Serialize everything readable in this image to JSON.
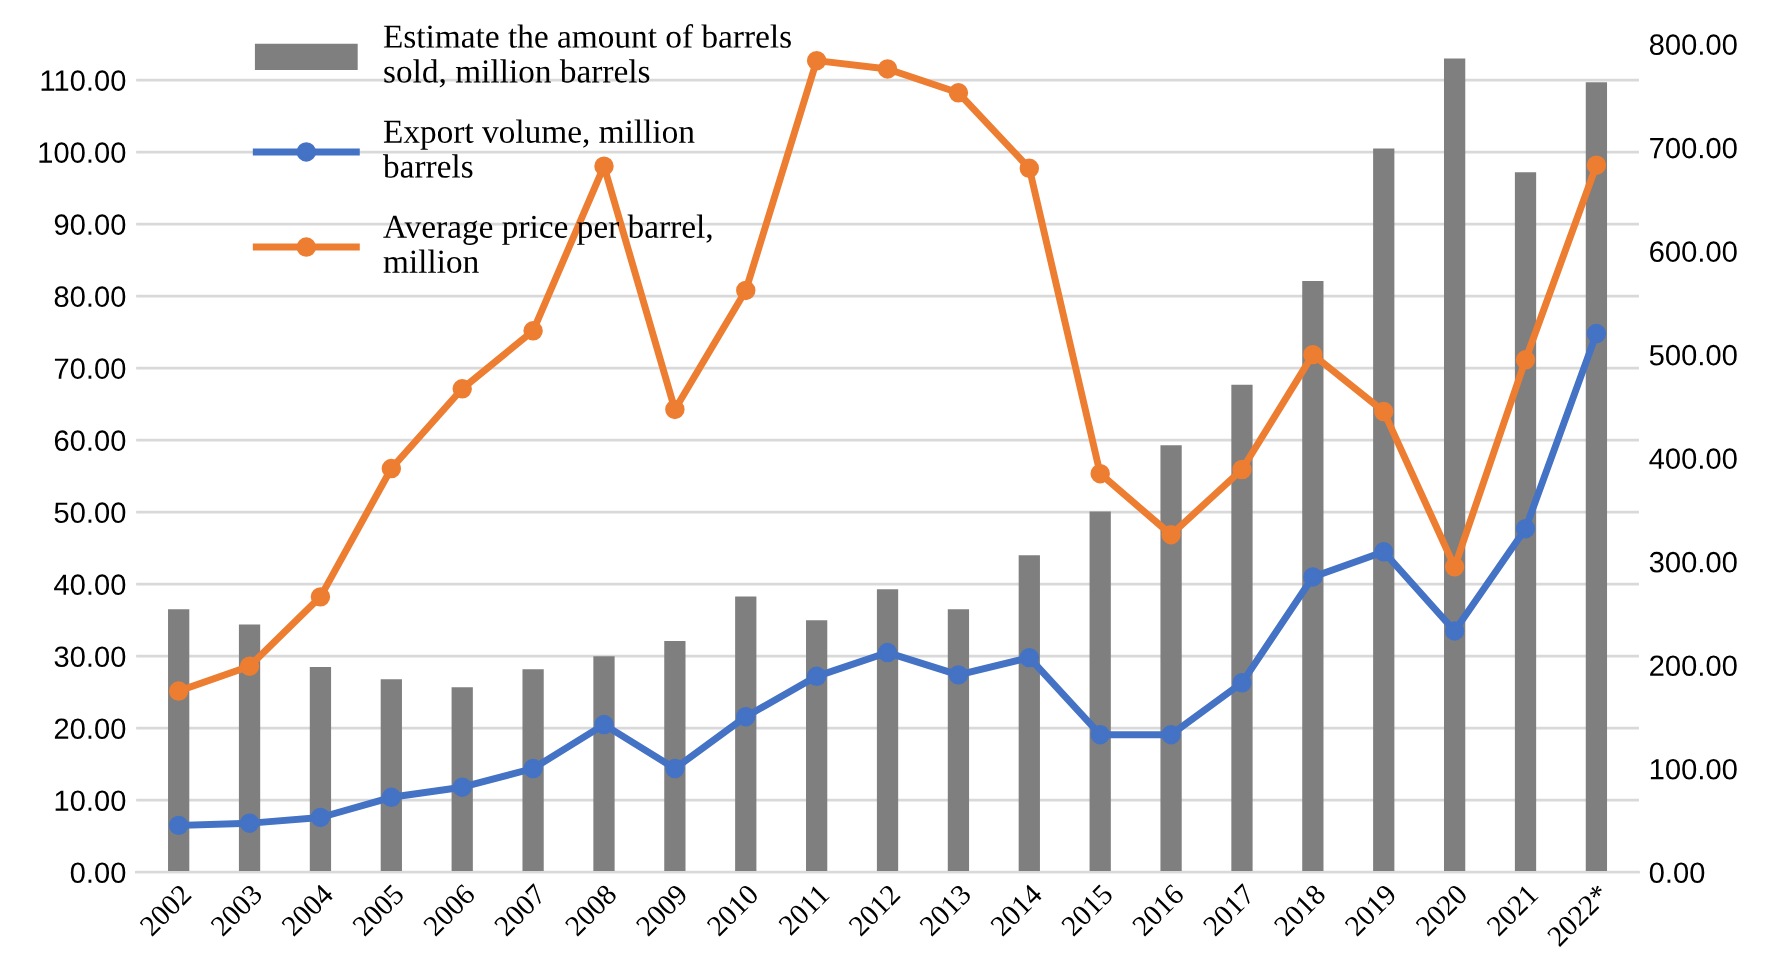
{
  "chart_data": {
    "type": "bar",
    "categories": [
      "2002",
      "2003",
      "2004",
      "2005",
      "2006",
      "2007",
      "2008",
      "2009",
      "2010",
      "2011",
      "2012",
      "2013",
      "2014",
      "2015",
      "2016",
      "2017",
      "2018",
      "2019",
      "2020",
      "2021",
      "2022*"
    ],
    "series": [
      {
        "name": "Estimate the amount of barrels sold, million barrels",
        "color": "#7f7f7f",
        "values": [
          36.5,
          34.4,
          28.5,
          26.8,
          25.7,
          28.2,
          30.0,
          32.1,
          38.3,
          35.0,
          39.3,
          36.5,
          44.0,
          50.1,
          59.3,
          67.7,
          82.1,
          100.5,
          113.0,
          97.2,
          109.7
        ]
      },
      {
        "name": "Export volume, million barrels",
        "type": "line",
        "color": "#4472c4",
        "values": [
          6.5,
          6.8,
          7.6,
          10.4,
          11.8,
          14.4,
          20.5,
          14.4,
          21.6,
          27.2,
          30.5,
          27.4,
          29.8,
          19.1,
          19.1,
          26.3,
          41.0,
          44.5,
          33.5,
          47.7,
          74.8
        ]
      },
      {
        "name": "Average price per barrel, million",
        "type": "line",
        "axis": "y2",
        "color": "#ed7d31",
        "values": [
          175,
          199,
          266,
          390,
          467,
          523,
          682,
          447,
          562,
          784,
          776,
          753,
          680,
          385,
          326,
          389,
          500,
          445,
          295,
          495,
          683
        ]
      }
    ],
    "ylim": [
      0,
      115
    ],
    "yticks": [
      {
        "value": 0,
        "label": "0.00"
      },
      {
        "value": 10,
        "label": "10.00"
      },
      {
        "value": 20,
        "label": "20.00"
      },
      {
        "value": 30,
        "label": "30.00"
      },
      {
        "value": 40,
        "label": "40.00"
      },
      {
        "value": 50,
        "label": "50.00"
      },
      {
        "value": 60,
        "label": "60.00"
      },
      {
        "value": 70,
        "label": "70.00"
      },
      {
        "value": 80,
        "label": "80.00"
      },
      {
        "value": 90,
        "label": "90.00"
      },
      {
        "value": 100,
        "label": "100.00"
      },
      {
        "value": 110,
        "label": "110.00"
      }
    ],
    "y2lim": [
      0,
      800
    ],
    "y2ticks": [
      {
        "value": 0,
        "label": "0.00"
      },
      {
        "value": 100,
        "label": "100.00"
      },
      {
        "value": 200,
        "label": "200.00"
      },
      {
        "value": 300,
        "label": "300.00"
      },
      {
        "value": 400,
        "label": "400.00"
      },
      {
        "value": 500,
        "label": "500.00"
      },
      {
        "value": 600,
        "label": "600.00"
      },
      {
        "value": 700,
        "label": "700.00"
      },
      {
        "value": 800,
        "label": "800.00"
      }
    ],
    "grid": "y",
    "legend": "top left",
    "marker": "circle",
    "line_style": "solid"
  }
}
